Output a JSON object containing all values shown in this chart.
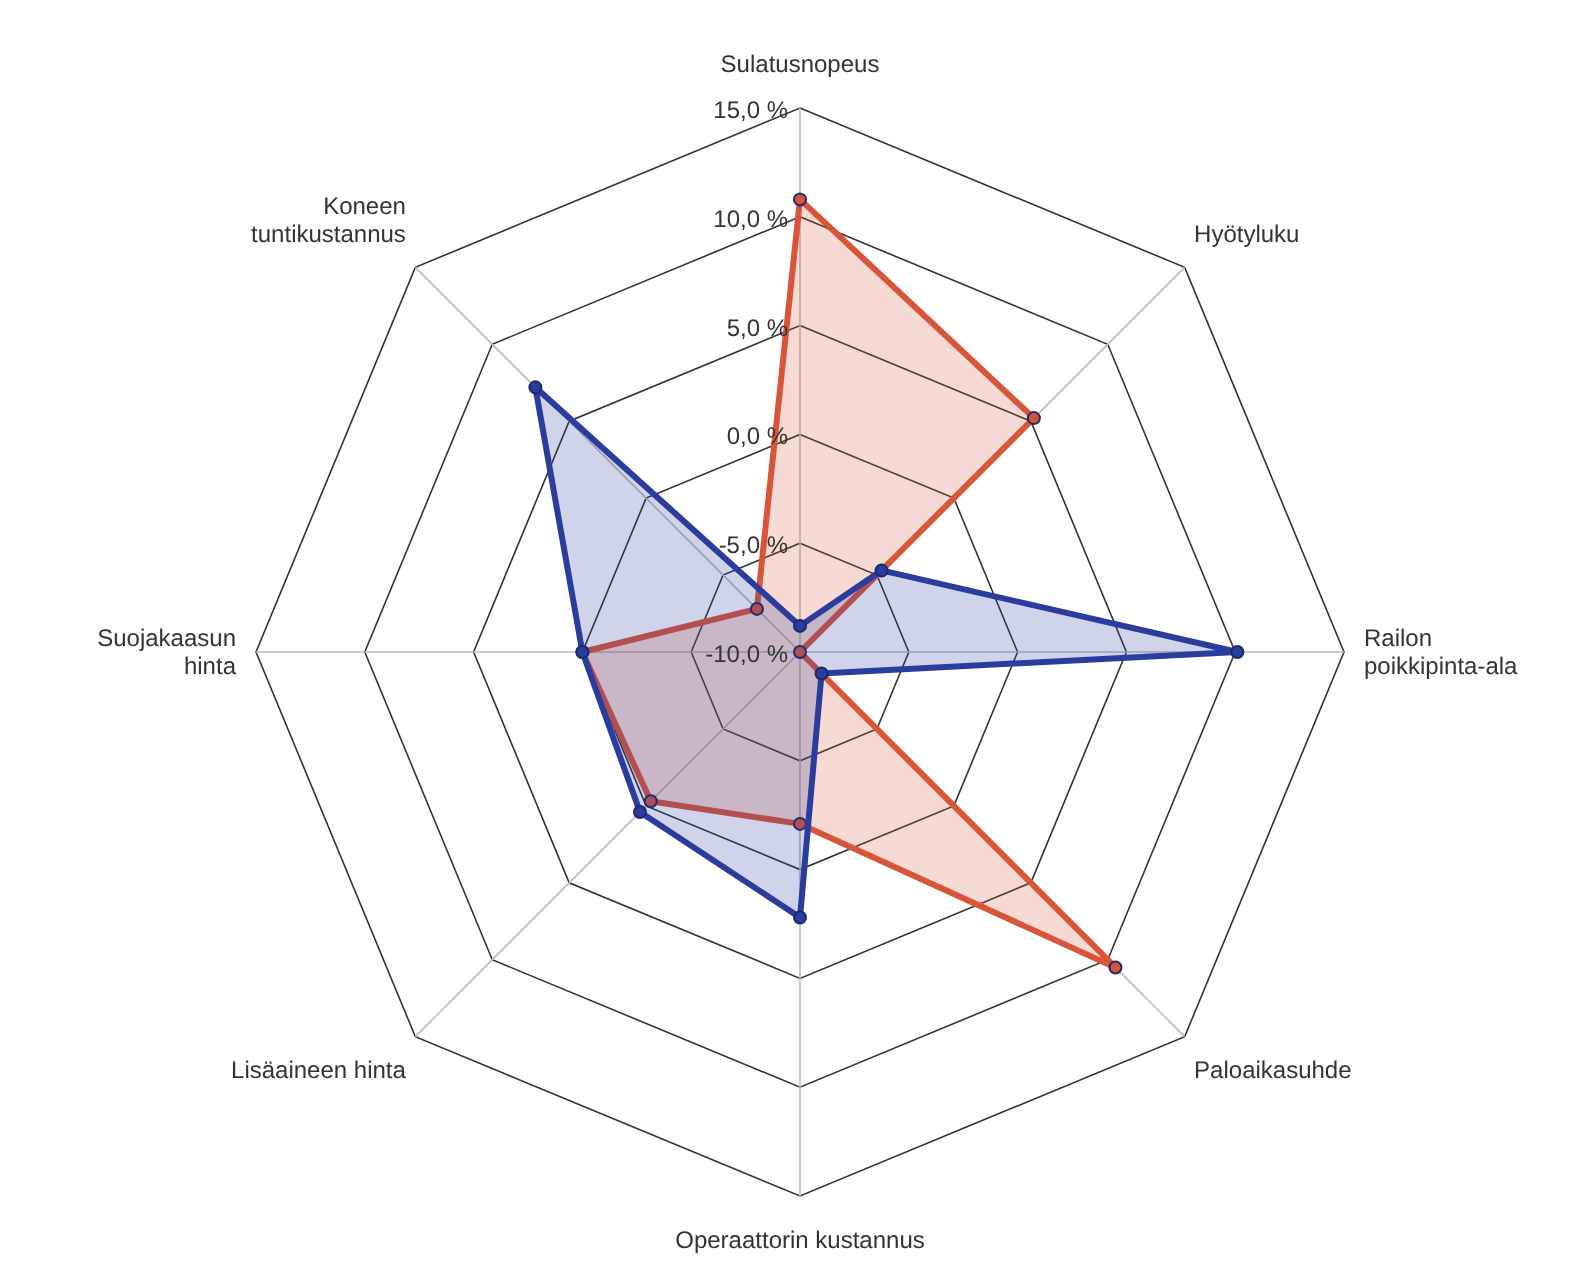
{
  "chart_data": {
    "type": "radar",
    "categories": [
      "Sulatusnopeus",
      "Hyötyluku",
      "Railon\npoikkipinta-ala",
      "Paloaikasuhde",
      "Operaattorin kustannus",
      "Lisäaineen hinta",
      "Suojakaasun\nhinta",
      "Koneen\ntuntikustannus"
    ],
    "series": [
      {
        "color": "#d9553a",
        "values": [
          10.8,
          5.2,
          -10,
          10.5,
          -2.1,
          -0.3,
          0,
          -7.2
        ]
      },
      {
        "color": "#2a3d9e",
        "values": [
          -8.8,
          -4.7,
          10.1,
          -8.6,
          2.2,
          0.4,
          0,
          7.2
        ]
      }
    ],
    "ylim": [
      -10,
      15
    ],
    "yticks": [
      {
        "value": -10,
        "label": "-10,0 %"
      },
      {
        "value": -5,
        "label": "-5,0 %"
      },
      {
        "value": 0,
        "label": "0,0 %"
      },
      {
        "value": 5,
        "label": "5,0 %"
      },
      {
        "value": 10,
        "label": "10,0 %"
      },
      {
        "value": 15,
        "label": "15,0 %"
      }
    ],
    "grid": true,
    "marker": "circle"
  }
}
